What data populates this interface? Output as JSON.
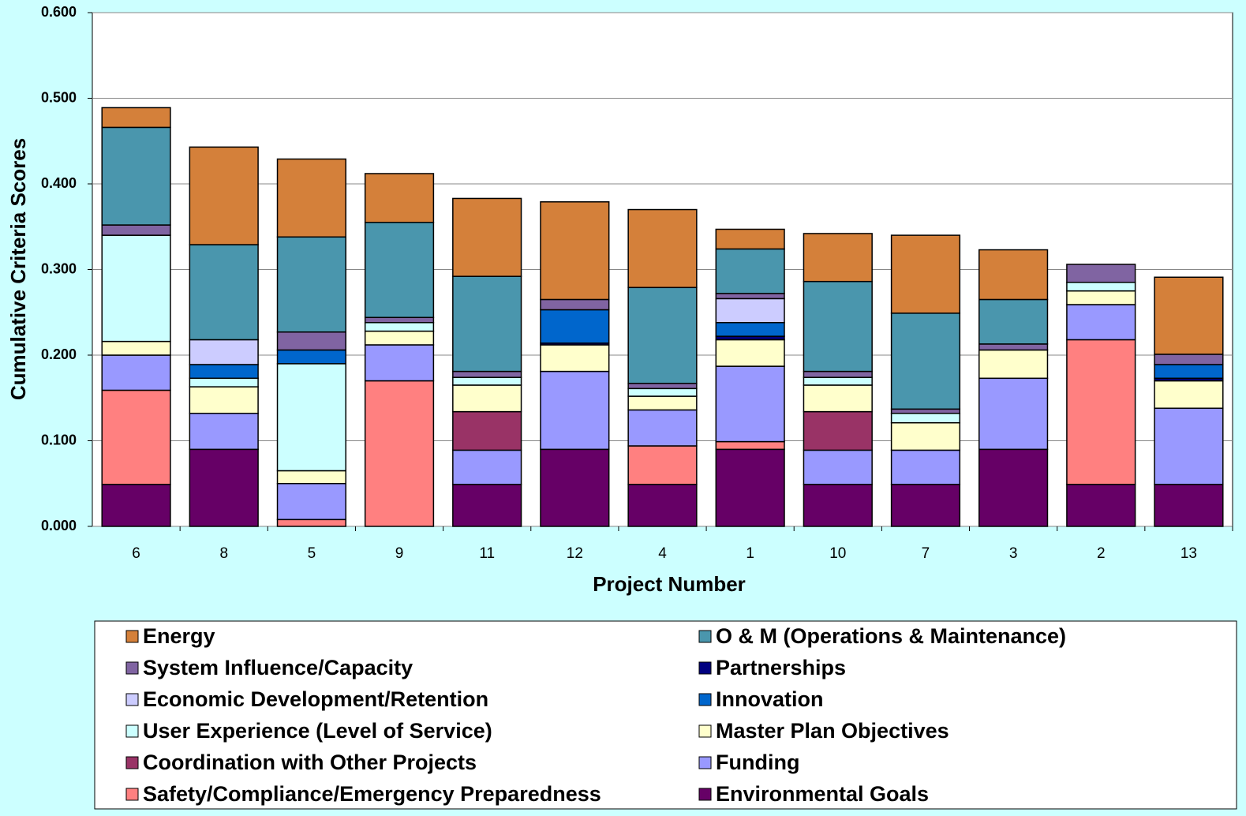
{
  "chart_data": {
    "type": "stacked_bar",
    "x_label": "Project Number",
    "y_label": "Cumulative Criteria Scores",
    "categories": [
      "6",
      "8",
      "5",
      "9",
      "11",
      "12",
      "4",
      "1",
      "10",
      "7",
      "3",
      "2",
      "13"
    ],
    "ylim": [
      0,
      0.6
    ],
    "yticks": [
      {
        "value": 0,
        "label": "0.000"
      },
      {
        "value": 0.1,
        "label": "0.100"
      },
      {
        "value": 0.2,
        "label": "0.200"
      },
      {
        "value": 0.3,
        "label": "0.300"
      },
      {
        "value": 0.4,
        "label": "0.400"
      },
      {
        "value": 0.5,
        "label": "0.500"
      },
      {
        "value": 0.6,
        "label": "0.600"
      }
    ],
    "grid": true,
    "series": [
      {
        "name": "Environmental Goals",
        "color": "#660066",
        "values": [
          0.049,
          0.09,
          0,
          0,
          0.049,
          0.09,
          0.049,
          0.09,
          0.049,
          0.049,
          0.09,
          0.049,
          0.049
        ]
      },
      {
        "name": "Safety/Compliance/Emergency Preparedness",
        "color": "#ff8080",
        "values": [
          0.11,
          0,
          0.008,
          0.17,
          0,
          0,
          0.045,
          0.009,
          0,
          0,
          0,
          0.169,
          0
        ]
      },
      {
        "name": "Funding",
        "color": "#9999ff",
        "values": [
          0.041,
          0.042,
          0.042,
          0.042,
          0.04,
          0.091,
          0.042,
          0.088,
          0.04,
          0.04,
          0.083,
          0.041,
          0.089
        ]
      },
      {
        "name": "Coordination with Other Projects",
        "color": "#993366",
        "values": [
          0,
          0,
          0,
          0,
          0.045,
          0,
          0,
          0,
          0.045,
          0,
          0,
          0,
          0
        ]
      },
      {
        "name": "Master Plan Objectives",
        "color": "#ffffcc",
        "values": [
          0.016,
          0.031,
          0.015,
          0.016,
          0.031,
          0.031,
          0.016,
          0.031,
          0.031,
          0.032,
          0.033,
          0.016,
          0.032
        ]
      },
      {
        "name": "User Experience (Level of Service)",
        "color": "#ccffff",
        "values": [
          0.124,
          0.01,
          0.125,
          0.01,
          0.009,
          0,
          0.009,
          0,
          0.009,
          0.011,
          0,
          0.01,
          0
        ]
      },
      {
        "name": "Partnerships",
        "color": "#000080",
        "values": [
          0,
          0,
          0,
          0,
          0,
          0.002,
          0,
          0.004,
          0,
          0,
          0,
          0,
          0.003
        ]
      },
      {
        "name": "Innovation",
        "color": "#0066cc",
        "values": [
          0,
          0.016,
          0.016,
          0,
          0,
          0.039,
          0,
          0.016,
          0,
          0,
          0,
          0,
          0.016
        ]
      },
      {
        "name": "Economic Development/Retention",
        "color": "#ccccff",
        "values": [
          0,
          0.029,
          0,
          0,
          0,
          0,
          0,
          0.028,
          0,
          0,
          0,
          0,
          0
        ]
      },
      {
        "name": "System Influence/Capacity",
        "color": "#8064a2",
        "values": [
          0.012,
          0,
          0.021,
          0.006,
          0.007,
          0.012,
          0.006,
          0.006,
          0.007,
          0.005,
          0.007,
          0.021,
          0.012
        ]
      },
      {
        "name": "O & M (Operations & Maintenance)",
        "color": "#4a96ad",
        "values": [
          0.114,
          0.111,
          0.111,
          0.111,
          0.111,
          0,
          0.112,
          0.052,
          0.105,
          0.112,
          0.052,
          0,
          0
        ]
      },
      {
        "name": "Energy",
        "color": "#d4803a",
        "values": [
          0.023,
          0.114,
          0.091,
          0.057,
          0.091,
          0.114,
          0.091,
          0.023,
          0.056,
          0.091,
          0.058,
          0,
          0.09
        ]
      }
    ]
  }
}
